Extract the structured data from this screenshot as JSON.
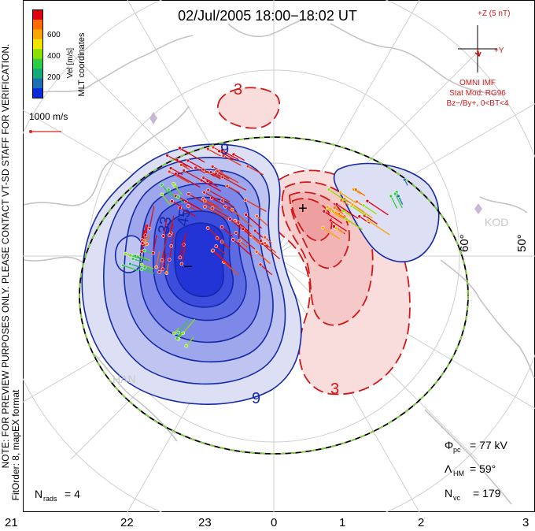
{
  "header": {
    "title": "02/Jul/2005 18:00−18:02 UT"
  },
  "colorbar": {
    "axis_label": "Vel [m/s]",
    "ticks": [
      "600",
      "400",
      "200"
    ],
    "colors": [
      "#e00010",
      "#ff6a00",
      "#f8a500",
      "#f0e400",
      "#8ce000",
      "#2ecc40",
      "#16a97a",
      "#1d6fb2",
      "#0b2ad8"
    ]
  },
  "coordinate_label": "MLT coordinates",
  "scale_vector": {
    "label": "1000 m/s",
    "color": "#e02020"
  },
  "imf_panel": {
    "bz_label": "+Z (5 nT)",
    "by_label": "+Y",
    "source": "OMNI IMF",
    "model": "Stat Mod: RG96",
    "condition": "Bz−/By+, 0<BT<4"
  },
  "side_note": {
    "line1": "NOTE: FOR PREVIEW PURPOSES ONLY. PLEASE CONTACT VT-SD STAFF FOR VERIFICATION.",
    "line2": "FitOrder: 8, mapEX format"
  },
  "contour_labels": {
    "top_positive": "3",
    "bottom_positive": "3",
    "upper_negative": "9",
    "lower_negative": "9",
    "inner_negative_a": "33",
    "inner_negative_b": "45",
    "min_marker": "−",
    "max_marker": "+"
  },
  "latitude_labels": [
    "60°",
    "50°"
  ],
  "station_labels": [
    "HAN",
    "KOD"
  ],
  "stats": {
    "phi_pc_label": "Φ",
    "phi_pc_sub": "pc",
    "phi_pc_value": "= 77 kV",
    "lambda_hm_label": "Λ",
    "lambda_hm_sub": "HM",
    "lambda_hm_value": "= 59°",
    "n_vc_label": "N",
    "n_vc_sub": "vc",
    "n_vc_value": "= 179",
    "n_rads_label": "N",
    "n_rads_sub": "rads",
    "n_rads_value": "= 4"
  },
  "mlt_axis": [
    "21",
    "22",
    "23",
    "0",
    "1",
    "2",
    "3"
  ],
  "colors": {
    "negative_fill": "#1e2ee6",
    "negative_line": "#1428a8",
    "positive_fill": "#f3a6a6",
    "positive_line": "#d01818",
    "boundary_dash": "#7ecf3a",
    "grid": "#cfcfcf",
    "coast": "#c4c4c4"
  }
}
